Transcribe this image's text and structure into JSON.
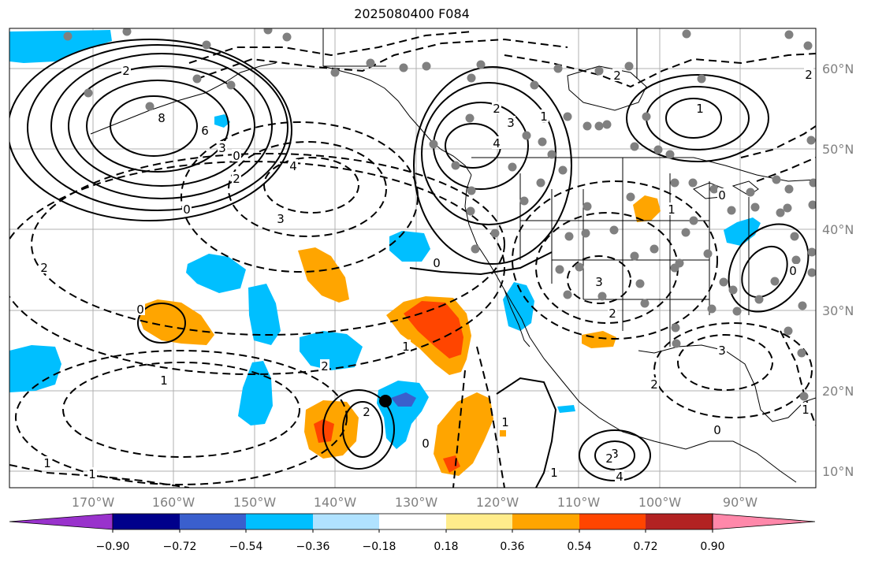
{
  "title": "2025080400 F084",
  "lon_ticks": [
    "170°W",
    "160°W",
    "150°W",
    "140°W",
    "130°W",
    "120°W",
    "110°W",
    "100°W",
    "90°W"
  ],
  "lat_ticks": [
    "60°N",
    "50°N",
    "40°N",
    "30°N",
    "20°N",
    "10°N"
  ],
  "colorbar": {
    "colors": [
      "#9932cc",
      "#00008b",
      "#3a5fcd",
      "#00bfff",
      "#b0e2ff",
      "#ffffff",
      "#ffec8b",
      "#ffa500",
      "#ff4500",
      "#b22222",
      "#ff88aa"
    ],
    "labels": [
      "−0.90",
      "−0.72",
      "−0.54",
      "−0.36",
      "−0.18",
      "0.18",
      "0.36",
      "0.54",
      "0.72",
      "0.90"
    ]
  },
  "contour_labels": [
    "2",
    "8",
    "6",
    "3",
    "0",
    "4",
    "2",
    "4",
    "3",
    "2",
    "0",
    "1",
    "1",
    "1",
    "0",
    "2",
    "3",
    "4",
    "2",
    "0",
    "3",
    "2",
    "1",
    "3",
    "2",
    "0",
    "1",
    "1",
    "3",
    "2",
    "1",
    "1",
    "0",
    "1",
    "1",
    "2",
    "2",
    "0",
    "0",
    "2"
  ],
  "colors": {
    "blue": "#00bfff",
    "light_blue": "#b0e2ff",
    "orange": "#ffa500",
    "red_orange": "#ff4500",
    "dark_blue": "#3a5fcd",
    "dot": "#808080"
  }
}
